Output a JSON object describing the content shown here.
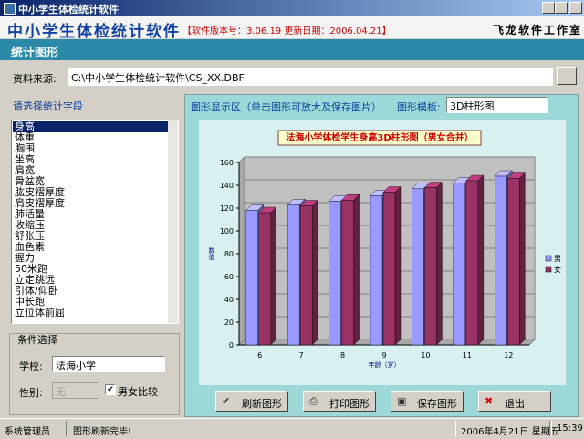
{
  "window": {
    "title": "中小学生体检统计软件"
  },
  "header": {
    "app_name": "中小学生体检统计软件",
    "version_info": "【软件版本号：3.06.19 更新日期：2006.04.21】",
    "studio": "飞龙软件工作室"
  },
  "section_title": "统计图形",
  "source": {
    "label": "资料来源:",
    "path": "C:\\中小学生体检统计软件\\CS_XX.DBF"
  },
  "fields": {
    "title": "请选择统计字段",
    "selected": 0,
    "items": [
      "身高",
      "体重",
      "胸围",
      "坐高",
      "肩宽",
      "骨盆宽",
      "肱皮褶厚度",
      "肩皮褶厚度",
      "肺活量",
      "收缩压",
      "舒张压",
      "血色素",
      "握力",
      "50米跑",
      "立定跳远",
      "引体/仰卧",
      "中长跑",
      "立位体前屈"
    ]
  },
  "conditions": {
    "title": "条件选择",
    "school_label": "学校:",
    "school": "法海小学",
    "gender_label": "性别:",
    "gender": "无",
    "compare_label": "男女比较",
    "compare_checked": true
  },
  "display": {
    "title": "图形显示区（单击图形可放大及保存图片）",
    "template_label": "图形模板:",
    "template": "3D柱形图"
  },
  "chart_data": {
    "type": "bar3d",
    "title": "法海小学体检学生身高3D柱形图（男女合并）",
    "x_label": "年龄（岁）",
    "y_label": "数值",
    "categories": [
      "6",
      "7",
      "8",
      "9",
      "10",
      "11",
      "12"
    ],
    "series": [
      {
        "name": "男",
        "color": "#9999ff",
        "values": [
          118,
          123,
          126,
          131,
          137,
          142,
          148
        ]
      },
      {
        "name": "女",
        "color": "#993366",
        "values": [
          116,
          122,
          127,
          134,
          138,
          144,
          146
        ]
      }
    ],
    "ylim": [
      0,
      160
    ],
    "yticks": [
      0,
      20,
      40,
      60,
      80,
      100,
      120,
      140,
      160
    ],
    "grid": true,
    "legend": "right"
  },
  "buttons": [
    "刷新图形",
    "打印图形",
    "保存图形",
    "退出"
  ],
  "status": [
    "系统管理员",
    "图形刷新完毕!",
    "2006年4月21日 星期五",
    "15:39"
  ]
}
